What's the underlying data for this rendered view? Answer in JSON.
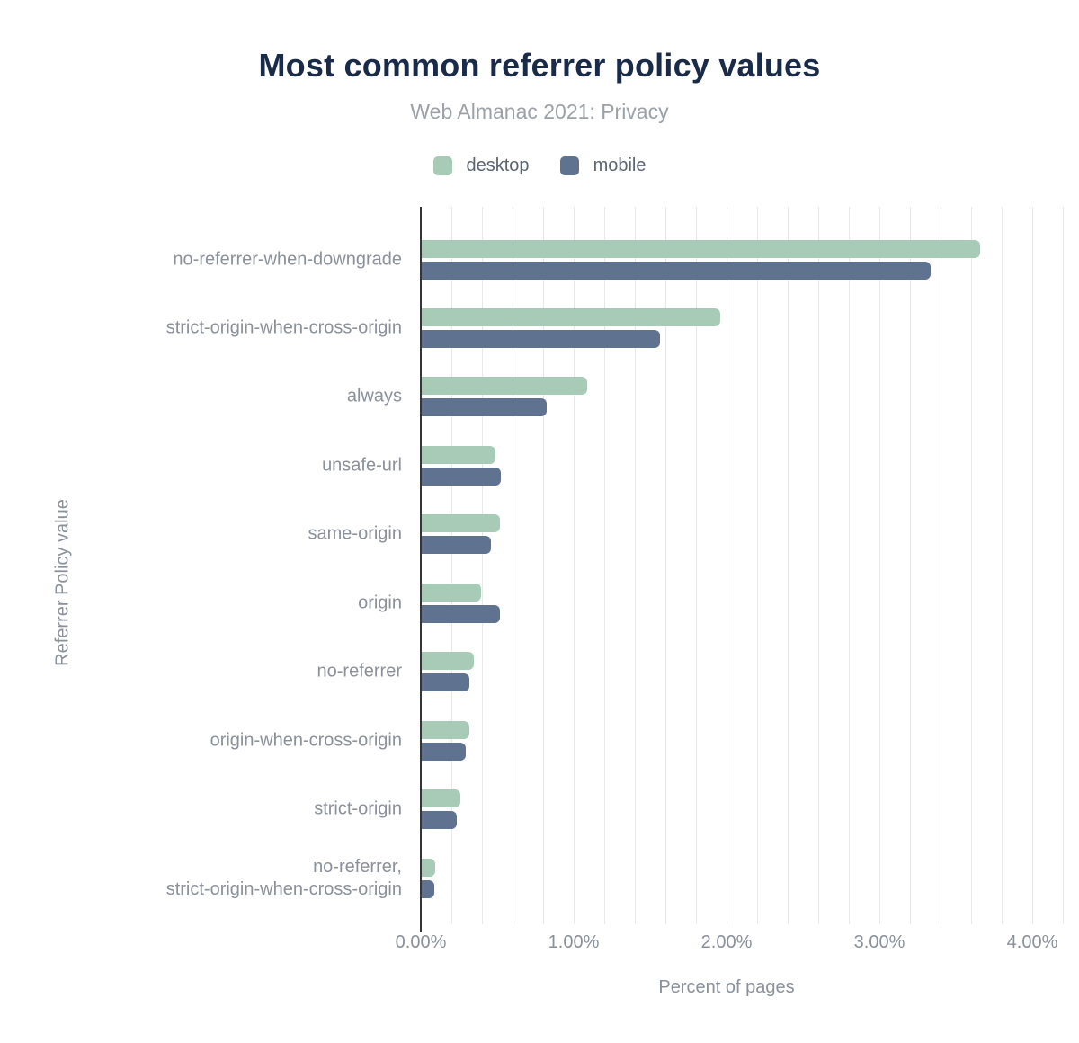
{
  "header": {
    "title": "Most common referrer policy values",
    "subtitle": "Web Almanac 2021: Privacy"
  },
  "chart_data": {
    "type": "bar",
    "orientation": "horizontal",
    "title": "Most common referrer policy values",
    "subtitle": "Web Almanac 2021: Privacy",
    "xlabel": "Percent of pages",
    "ylabel": "Referrer Policy value",
    "xlim": [
      0,
      4.2
    ],
    "grid_step_percent": 0.2,
    "grid": "vertical-only",
    "legend_position": "top-center",
    "xticks": [
      {
        "value": 0,
        "label": "0.00%"
      },
      {
        "value": 1,
        "label": "1.00%"
      },
      {
        "value": 2,
        "label": "2.00%"
      },
      {
        "value": 3,
        "label": "3.00%"
      },
      {
        "value": 4,
        "label": "4.00%"
      }
    ],
    "categories": [
      "no-referrer-when-downgrade",
      "strict-origin-when-cross-origin",
      "always",
      "unsafe-url",
      "same-origin",
      "origin",
      "no-referrer",
      "origin-when-cross-origin",
      "strict-origin",
      "no-referrer, strict-origin-when-cross-origin"
    ],
    "category_label_lines": [
      [
        "no-referrer-when-downgrade"
      ],
      [
        "strict-origin-when-cross-origin"
      ],
      [
        "always"
      ],
      [
        "unsafe-url"
      ],
      [
        "same-origin"
      ],
      [
        "origin"
      ],
      [
        "no-referrer"
      ],
      [
        "origin-when-cross-origin"
      ],
      [
        "strict-origin"
      ],
      [
        "no-referrer,",
        "strict-origin-when-cross-origin"
      ]
    ],
    "series": [
      {
        "name": "desktop",
        "color": "#a8cbb7",
        "values": [
          3.65,
          1.95,
          1.08,
          0.48,
          0.51,
          0.39,
          0.34,
          0.31,
          0.25,
          0.09
        ]
      },
      {
        "name": "mobile",
        "color": "#5f7290",
        "values": [
          3.33,
          1.56,
          0.82,
          0.52,
          0.45,
          0.51,
          0.31,
          0.29,
          0.23,
          0.08
        ]
      }
    ]
  },
  "colors": {
    "title": "#1a2b49",
    "subtitle": "#9ba1a8",
    "legend_text": "#5a6472",
    "axis_text": "#8a919b",
    "gridline": "#e8e8e8",
    "axis_line": "#32353a",
    "background": "#ffffff"
  }
}
